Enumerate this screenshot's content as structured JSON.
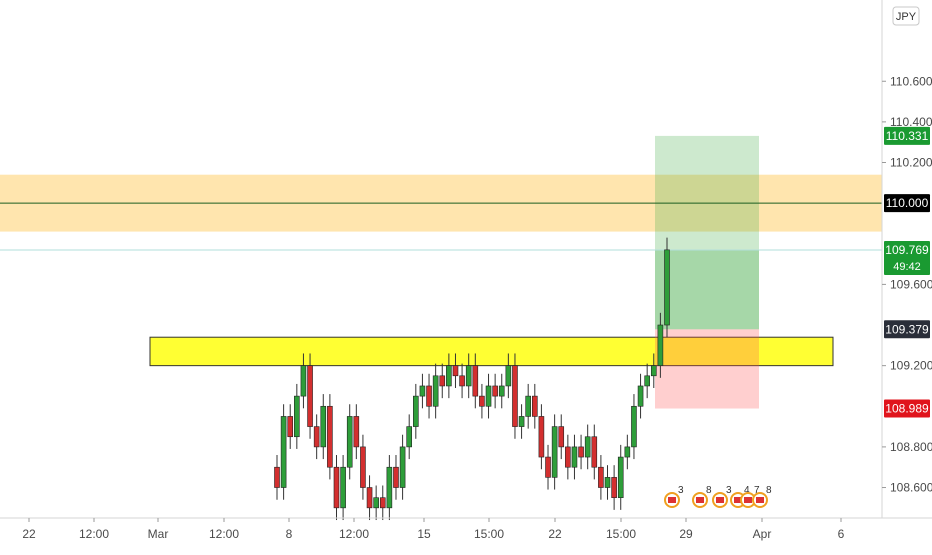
{
  "currency_label": "JPY",
  "chart_data": {
    "type": "candlestick",
    "title": "",
    "price_scale": {
      "min": 108.45,
      "max": 111.0,
      "ticks": [
        "110.600",
        "110.400",
        "110.200",
        "109.600",
        "109.200",
        "108.800",
        "108.600"
      ],
      "tick_values": [
        110.6,
        110.4,
        110.2,
        109.6,
        109.2,
        108.8,
        108.6
      ]
    },
    "time_axis": {
      "labels": [
        "22",
        "12:00",
        "Mar",
        "12:00",
        "8",
        "12:00",
        "15",
        "15:00",
        "22",
        "15:00",
        "29",
        "Apr",
        "6"
      ],
      "bold": [
        false,
        false,
        false,
        false,
        false,
        false,
        false,
        false,
        false,
        false,
        false,
        false,
        false
      ]
    },
    "price_badges": [
      {
        "id": "target",
        "value": "110.331",
        "color": "#1a9a31"
      },
      {
        "id": "level",
        "value": "110.000",
        "color": "#000000"
      },
      {
        "id": "current",
        "value": "109.769",
        "sub": "49:42",
        "color": "#1a9a31"
      },
      {
        "id": "entry",
        "value": "109.379",
        "color": "#2a2e39"
      },
      {
        "id": "stop",
        "value": "108.989",
        "color": "#e0141c"
      }
    ],
    "horizontal_line": {
      "value": 110.0,
      "color": "#1b5e20"
    },
    "current_price_line": {
      "value": 109.769,
      "color": "#b2dfdb"
    },
    "zones": [
      {
        "id": "supply-zone",
        "from": 109.86,
        "to": 110.14,
        "color": "#ffe0a0"
      },
      {
        "id": "breakout-zone",
        "from": 109.2,
        "to": 109.34,
        "color": "#ffff33"
      }
    ],
    "position": {
      "type": "long",
      "entry": 109.379,
      "target": 110.331,
      "stop": 108.989
    },
    "series_open_close": [
      [
        108.7,
        108.6
      ],
      [
        108.6,
        108.95
      ],
      [
        108.95,
        108.85
      ],
      [
        108.85,
        109.05
      ],
      [
        109.05,
        109.2
      ],
      [
        109.2,
        108.9
      ],
      [
        108.9,
        108.8
      ],
      [
        108.8,
        109.0
      ],
      [
        109.0,
        108.7
      ],
      [
        108.7,
        108.5
      ],
      [
        108.5,
        108.7
      ],
      [
        108.7,
        108.95
      ],
      [
        108.95,
        108.8
      ],
      [
        108.8,
        108.6
      ],
      [
        108.6,
        108.5
      ],
      [
        108.5,
        108.55
      ],
      [
        108.55,
        108.5
      ],
      [
        108.5,
        108.7
      ],
      [
        108.7,
        108.6
      ],
      [
        108.6,
        108.8
      ],
      [
        108.8,
        108.9
      ],
      [
        108.9,
        109.05
      ],
      [
        109.05,
        109.1
      ],
      [
        109.1,
        109.0
      ],
      [
        109.0,
        109.15
      ],
      [
        109.15,
        109.1
      ],
      [
        109.1,
        109.2
      ],
      [
        109.2,
        109.15
      ],
      [
        109.15,
        109.1
      ],
      [
        109.1,
        109.2
      ],
      [
        109.2,
        109.05
      ],
      [
        109.05,
        109.0
      ],
      [
        109.0,
        109.1
      ],
      [
        109.1,
        109.05
      ],
      [
        109.05,
        109.1
      ],
      [
        109.1,
        109.2
      ],
      [
        109.2,
        108.9
      ],
      [
        108.9,
        108.95
      ],
      [
        108.95,
        109.05
      ],
      [
        109.05,
        108.95
      ],
      [
        108.95,
        108.75
      ],
      [
        108.75,
        108.65
      ],
      [
        108.65,
        108.9
      ],
      [
        108.9,
        108.8
      ],
      [
        108.8,
        108.7
      ],
      [
        108.7,
        108.8
      ],
      [
        108.8,
        108.75
      ],
      [
        108.75,
        108.85
      ],
      [
        108.85,
        108.7
      ],
      [
        108.7,
        108.6
      ],
      [
        108.6,
        108.65
      ],
      [
        108.65,
        108.55
      ],
      [
        108.55,
        108.75
      ],
      [
        108.75,
        108.8
      ],
      [
        108.8,
        109.0
      ],
      [
        109.0,
        109.1
      ],
      [
        109.1,
        109.15
      ],
      [
        109.15,
        109.2
      ],
      [
        109.2,
        109.4
      ],
      [
        109.4,
        109.77
      ]
    ],
    "events": [
      {
        "label": "3"
      },
      {
        "label": "8"
      },
      {
        "label": "3"
      },
      {
        "label": "4"
      },
      {
        "label": "7"
      },
      {
        "label": "8"
      }
    ]
  }
}
